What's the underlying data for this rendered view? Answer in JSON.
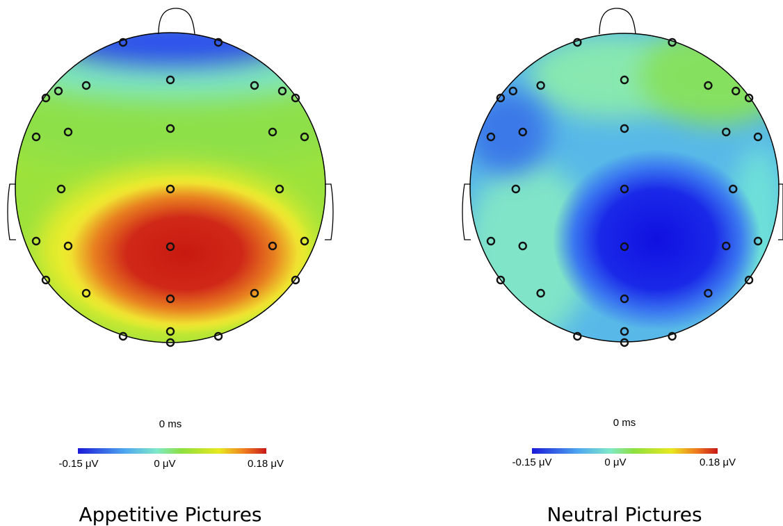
{
  "panels": [
    {
      "title": "Appetitive Pictures",
      "time": "0 ms",
      "scale": [
        "-0.15 μV",
        "0 μV",
        "0.18 μV"
      ]
    },
    {
      "title": "Neutral Pictures",
      "time": "0 ms",
      "scale": [
        "-0.15 μV",
        "0 μV",
        "0.18 μV"
      ]
    }
  ]
}
